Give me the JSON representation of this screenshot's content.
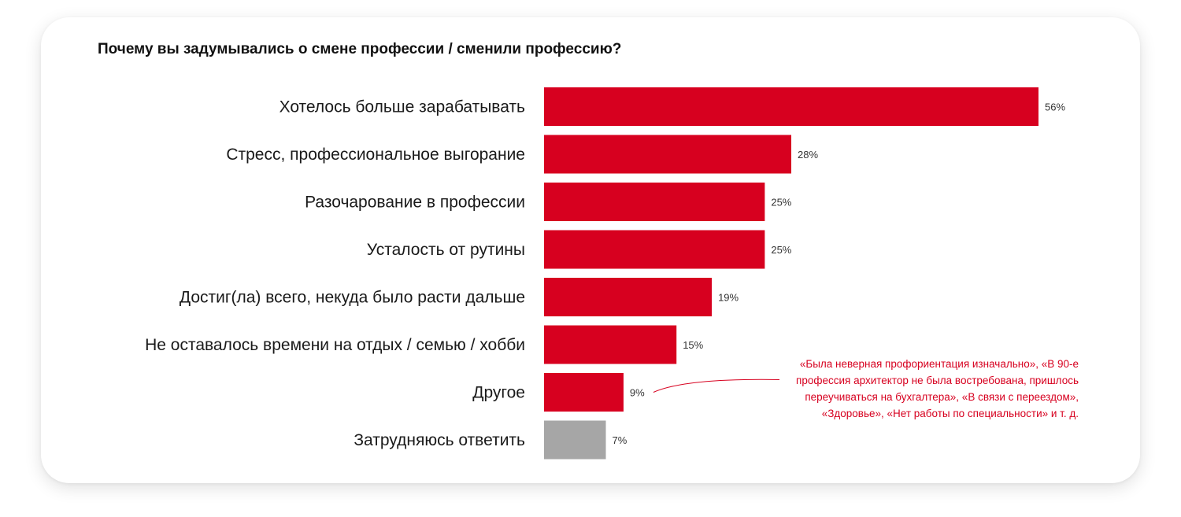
{
  "chart_data": {
    "type": "bar",
    "orientation": "horizontal",
    "title": "Почему вы задумывались о смене профессии / сменили профессию?",
    "categories": [
      "Хотелось больше зарабатывать",
      "Стресс, профессиональное выгорание",
      "Разочарование в профессии",
      "Усталость от рутины",
      "Достиг(ла) всего, некуда было расти дальше",
      "Не оставалось времени на отдых / семью / хобби",
      "Другое",
      "Затрудняюсь ответить"
    ],
    "values": [
      56,
      28,
      25,
      25,
      19,
      15,
      9,
      7
    ],
    "value_labels": [
      "56%",
      "28%",
      "25%",
      "25%",
      "19%",
      "15%",
      "9%",
      "7%"
    ],
    "bar_colors": [
      "#d7001f",
      "#d7001f",
      "#d7001f",
      "#d7001f",
      "#d7001f",
      "#d7001f",
      "#d7001f",
      "#a6a6a6"
    ],
    "annotation_for": "Другое",
    "annotation": "«Была неверная профориентация изначально», «В 90-е профессия архитектор не была востребована, пришлось переучиваться на бухгалтера», «В связи с переездом», «Здоровье», «Нет работы по специальности» и т. д.",
    "xlim": [
      0,
      56
    ],
    "grid": false,
    "legend": "none"
  }
}
